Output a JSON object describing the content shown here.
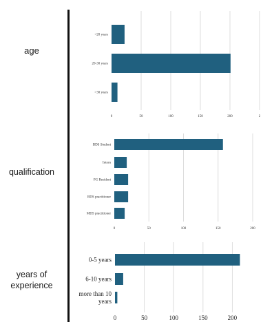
{
  "chart_data": [
    {
      "type": "bar",
      "orientation": "horizontal",
      "row_label": "age",
      "categories": [
        "<20 years",
        "20-30 years",
        ">30 years"
      ],
      "values": [
        22,
        201,
        10
      ],
      "xticks": [
        "0",
        "50",
        "100",
        "150",
        "200",
        "2"
      ],
      "xlim": [
        0,
        250
      ],
      "grid": true,
      "color": "#20607f"
    },
    {
      "type": "bar",
      "orientation": "horizontal",
      "row_label": "qualification",
      "categories": [
        "BDS Student",
        "Intern",
        "PG Resident",
        "BDS practitioner",
        "MDS practitioner"
      ],
      "values": [
        157,
        18,
        20,
        20,
        15
      ],
      "xticks": [
        "0",
        "50",
        "100",
        "150",
        "200"
      ],
      "xlim": [
        0,
        200
      ],
      "grid": true,
      "color": "#20607f"
    },
    {
      "type": "bar",
      "orientation": "horizontal",
      "row_label": "years of\nexperience",
      "categories": [
        "0-5 years",
        "6-10 years",
        "more than 10\nyears"
      ],
      "values": [
        213,
        14,
        4
      ],
      "xticks": [
        "0",
        "50",
        "100",
        "150",
        "200"
      ],
      "xlim": [
        0,
        230
      ],
      "grid": true,
      "color": "#20607f"
    }
  ]
}
